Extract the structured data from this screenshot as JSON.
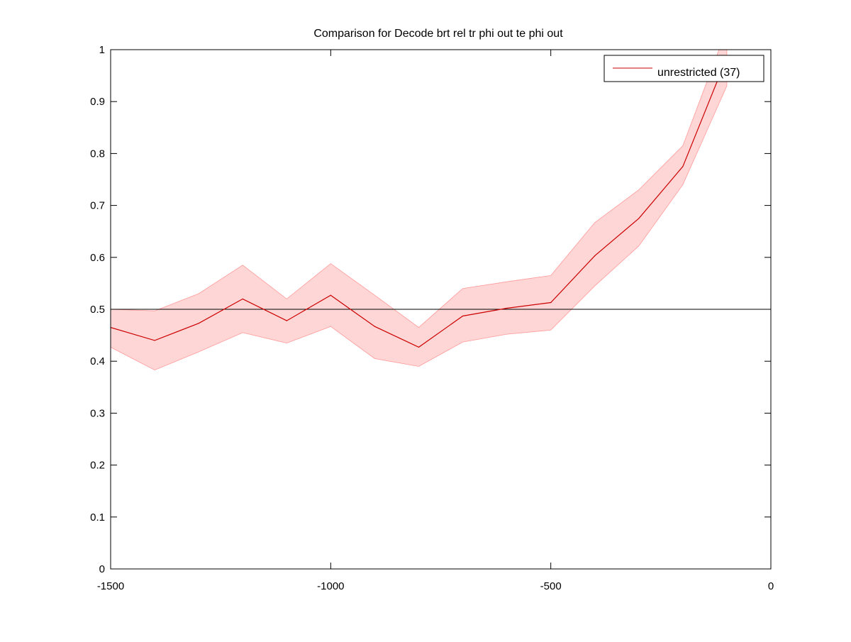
{
  "colors": {
    "background": "#ffffff",
    "axes": "#000000",
    "series_line": "#cc0000",
    "band_fill": "#ffcccc",
    "band_edge": "#ff9999",
    "reference_line": "#000000"
  },
  "chart_data": {
    "type": "line",
    "title": "Comparison for Decode brt rel tr phi out te phi out",
    "xlabel": "",
    "ylabel": "",
    "xlim": [
      -1500,
      0
    ],
    "ylim": [
      0,
      1
    ],
    "x_ticks": [
      -1500,
      -1000,
      -500,
      0
    ],
    "x_tick_labels": [
      "-1500",
      "-1000",
      "-500",
      "0"
    ],
    "y_ticks": [
      0,
      0.1,
      0.2,
      0.3,
      0.4,
      0.5,
      0.6,
      0.7,
      0.8,
      0.9,
      1
    ],
    "y_tick_labels": [
      "0",
      "0.1",
      "0.2",
      "0.3",
      "0.4",
      "0.5",
      "0.6",
      "0.7",
      "0.8",
      "0.9",
      "1"
    ],
    "grid": false,
    "legend": {
      "location": "top-right",
      "entries": [
        "unrestricted (37)"
      ]
    },
    "reference_line": {
      "y": 0.5
    },
    "x": [
      -1500,
      -1400,
      -1300,
      -1200,
      -1100,
      -1000,
      -900,
      -800,
      -700,
      -600,
      -500,
      -400,
      -300,
      -200,
      -100
    ],
    "series": [
      {
        "name": "unrestricted (37)",
        "values": [
          0.465,
          0.44,
          0.473,
          0.52,
          0.478,
          0.527,
          0.467,
          0.427,
          0.487,
          0.502,
          0.513,
          0.603,
          0.675,
          0.775,
          0.985
        ],
        "upper": [
          0.5,
          0.497,
          0.53,
          0.585,
          0.52,
          0.588,
          0.527,
          0.465,
          0.54,
          0.553,
          0.565,
          0.667,
          0.73,
          0.815,
          1.04
        ],
        "lower": [
          0.427,
          0.383,
          0.418,
          0.455,
          0.435,
          0.467,
          0.405,
          0.39,
          0.437,
          0.452,
          0.46,
          0.545,
          0.622,
          0.74,
          0.93
        ]
      }
    ]
  }
}
